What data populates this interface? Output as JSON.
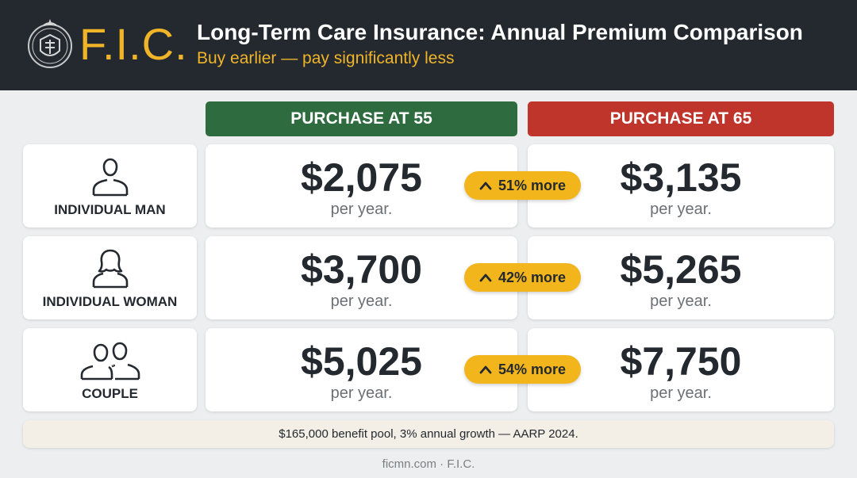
{
  "header": {
    "logo_text": "F.I.C.",
    "title": "Long-Term Care Insurance: Annual Premium Comparison",
    "subtitle": "Buy earlier — pay significantly less"
  },
  "columns": {
    "age55": "PURCHASE AT 55",
    "age65": "PURCHASE AT 65"
  },
  "rows": [
    {
      "label": "INDIVIDUAL MAN",
      "icon": "person-icon",
      "price_55": "$2,075",
      "price_65": "$3,135",
      "per": "per year.",
      "diff": "51% more"
    },
    {
      "label": "INDIVIDUAL WOMAN",
      "icon": "woman-icon",
      "price_55": "$3,700",
      "price_65": "$5,265",
      "per": "per year.",
      "diff": "42% more"
    },
    {
      "label": "COUPLE",
      "icon": "couple-icon",
      "price_55": "$5,025",
      "price_65": "$7,750",
      "per": "per year.",
      "diff": "54% more"
    }
  ],
  "footnote": "$165,000 benefit pool, 3% annual growth — AARP 2024.",
  "source": "ficmn.com · F.I.C.",
  "colors": {
    "header_bg": "#23292f",
    "accent_gold": "#f0b429",
    "green": "#2e6b3e",
    "red": "#c0352b",
    "badge": "#f2b51c"
  }
}
